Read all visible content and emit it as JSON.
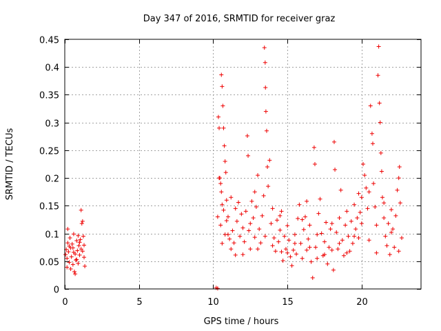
{
  "chart_data": {
    "type": "scatter",
    "title": "Day 347 of 2016, SRMTID for receiver graz",
    "xlabel": "GPS time / hours",
    "ylabel": "SRMTID / TECUs",
    "xlim": [
      0,
      24
    ],
    "ylim": [
      0,
      0.45
    ],
    "xticks": [
      0,
      5,
      10,
      15,
      20
    ],
    "xtick_labels": [
      "0",
      "5",
      "10",
      "15",
      "20"
    ],
    "yticks": [
      0,
      0.05,
      0.1,
      0.15,
      0.2,
      0.25,
      0.3,
      0.35,
      0.4,
      0.45
    ],
    "ytick_labels": [
      "0",
      "0.05",
      "0.1",
      "0.15",
      "0.2",
      "0.25",
      "0.3",
      "0.35",
      "0.4",
      "0.45"
    ],
    "grid": true,
    "marker": "+",
    "color": "#ee0000",
    "series": [
      {
        "name": "SRMTID",
        "points": [
          [
            0.05,
            0.062
          ],
          [
            0.1,
            0.071
          ],
          [
            0.15,
            0.055
          ],
          [
            0.2,
            0.083
          ],
          [
            0.25,
            0.067
          ],
          [
            0.3,
            0.048
          ],
          [
            0.35,
            0.092
          ],
          [
            0.4,
            0.074
          ],
          [
            0.45,
            0.058
          ],
          [
            0.5,
            0.081
          ],
          [
            0.55,
            0.044
          ],
          [
            0.6,
            0.066
          ],
          [
            0.65,
            0.031
          ],
          [
            0.7,
            0.027
          ],
          [
            0.75,
            0.052
          ],
          [
            0.8,
            0.087
          ],
          [
            0.85,
            0.069
          ],
          [
            0.9,
            0.096
          ],
          [
            0.95,
            0.078
          ],
          [
            1.0,
            0.061
          ],
          [
            1.05,
            0.089
          ],
          [
            1.1,
            0.072
          ],
          [
            1.15,
            0.118
          ],
          [
            1.2,
            0.122
          ],
          [
            1.1,
            0.142
          ],
          [
            1.25,
            0.095
          ],
          [
            1.3,
            0.057
          ],
          [
            1.35,
            0.041
          ],
          [
            0.2,
            0.108
          ],
          [
            0.4,
            0.036
          ],
          [
            0.6,
            0.099
          ],
          [
            0.8,
            0.053
          ],
          [
            1.0,
            0.084
          ],
          [
            1.2,
            0.068
          ],
          [
            0.3,
            0.077
          ],
          [
            0.7,
            0.063
          ],
          [
            0.9,
            0.046
          ],
          [
            1.3,
            0.079
          ],
          [
            0.15,
            0.039
          ],
          [
            0.55,
            0.074
          ],
          [
            10.2,
            0.002
          ],
          [
            10.3,
            0.001
          ],
          [
            10.3,
            0.13
          ],
          [
            10.35,
            0.31
          ],
          [
            10.4,
            0.29
          ],
          [
            10.45,
            0.2
          ],
          [
            10.5,
            0.19
          ],
          [
            10.55,
            0.386
          ],
          [
            10.6,
            0.365
          ],
          [
            10.65,
            0.33
          ],
          [
            10.7,
            0.29
          ],
          [
            10.75,
            0.258
          ],
          [
            10.8,
            0.23
          ],
          [
            10.85,
            0.21
          ],
          [
            10.9,
            0.16
          ],
          [
            10.5,
            0.115
          ],
          [
            10.6,
            0.082
          ],
          [
            10.7,
            0.142
          ],
          [
            10.8,
            0.098
          ],
          [
            10.9,
            0.123
          ],
          [
            10.4,
            0.2
          ],
          [
            10.55,
            0.175
          ],
          [
            11.0,
            0.13
          ],
          [
            11.1,
            0.09
          ],
          [
            11.2,
            0.072
          ],
          [
            11.3,
            0.105
          ],
          [
            11.4,
            0.083
          ],
          [
            11.5,
            0.061
          ],
          [
            11.6,
            0.122
          ],
          [
            11.7,
            0.156
          ],
          [
            11.8,
            0.095
          ],
          [
            11.9,
            0.135
          ],
          [
            12.0,
            0.11
          ],
          [
            12.1,
            0.085
          ],
          [
            12.2,
            0.14
          ],
          [
            12.3,
            0.276
          ],
          [
            12.35,
            0.24
          ],
          [
            12.4,
            0.105
          ],
          [
            12.5,
            0.072
          ],
          [
            12.6,
            0.158
          ],
          [
            12.7,
            0.128
          ],
          [
            12.8,
            0.093
          ],
          [
            12.9,
            0.148
          ],
          [
            13.0,
            0.205
          ],
          [
            13.1,
            0.108
          ],
          [
            13.2,
            0.083
          ],
          [
            13.3,
            0.132
          ],
          [
            13.4,
            0.168
          ],
          [
            13.45,
            0.435
          ],
          [
            13.5,
            0.408
          ],
          [
            13.52,
            0.363
          ],
          [
            13.55,
            0.32
          ],
          [
            13.6,
            0.285
          ],
          [
            13.65,
            0.22
          ],
          [
            13.7,
            0.185
          ],
          [
            13.8,
            0.232
          ],
          [
            13.9,
            0.118
          ],
          [
            14.0,
            0.145
          ],
          [
            14.1,
            0.092
          ],
          [
            14.2,
            0.068
          ],
          [
            14.3,
            0.124
          ],
          [
            14.4,
            0.085
          ],
          [
            14.5,
            0.106
          ],
          [
            14.6,
            0.067
          ],
          [
            14.7,
            0.051
          ],
          [
            14.8,
            0.095
          ],
          [
            14.9,
            0.072
          ],
          [
            15.0,
            0.114
          ],
          [
            15.1,
            0.088
          ],
          [
            15.2,
            0.058
          ],
          [
            15.3,
            0.042
          ],
          [
            15.4,
            0.07
          ],
          [
            15.5,
            0.098
          ],
          [
            15.6,
            0.063
          ],
          [
            15.7,
            0.127
          ],
          [
            15.8,
            0.152
          ],
          [
            15.9,
            0.082
          ],
          [
            16.0,
            0.055
          ],
          [
            16.1,
            0.107
          ],
          [
            16.2,
            0.13
          ],
          [
            16.3,
            0.07
          ],
          [
            16.4,
            0.09
          ],
          [
            16.5,
            0.115
          ],
          [
            16.6,
            0.049
          ],
          [
            16.7,
            0.02
          ],
          [
            16.8,
            0.255
          ],
          [
            16.85,
            0.225
          ],
          [
            16.9,
            0.075
          ],
          [
            17.0,
            0.055
          ],
          [
            17.1,
            0.136
          ],
          [
            17.2,
            0.162
          ],
          [
            17.3,
            0.1
          ],
          [
            17.4,
            0.06
          ],
          [
            17.5,
            0.085
          ],
          [
            17.6,
            0.12
          ],
          [
            17.7,
            0.045
          ],
          [
            17.8,
            0.075
          ],
          [
            17.9,
            0.108
          ],
          [
            18.0,
            0.07
          ],
          [
            18.1,
            0.034
          ],
          [
            18.15,
            0.265
          ],
          [
            18.2,
            0.215
          ],
          [
            18.3,
            0.102
          ],
          [
            18.4,
            0.072
          ],
          [
            18.5,
            0.128
          ],
          [
            18.6,
            0.178
          ],
          [
            18.7,
            0.088
          ],
          [
            18.8,
            0.06
          ],
          [
            18.9,
            0.115
          ],
          [
            19.0,
            0.14
          ],
          [
            19.1,
            0.095
          ],
          [
            19.2,
            0.068
          ],
          [
            19.3,
            0.122
          ],
          [
            19.4,
            0.082
          ],
          [
            19.5,
            0.152
          ],
          [
            19.6,
            0.108
          ],
          [
            19.7,
            0.128
          ],
          [
            19.8,
            0.092
          ],
          [
            19.9,
            0.138
          ],
          [
            20.0,
            0.165
          ],
          [
            20.1,
            0.225
          ],
          [
            20.2,
            0.205
          ],
          [
            20.3,
            0.182
          ],
          [
            20.4,
            0.145
          ],
          [
            20.5,
            0.175
          ],
          [
            20.6,
            0.33
          ],
          [
            20.7,
            0.28
          ],
          [
            20.75,
            0.262
          ],
          [
            20.8,
            0.19
          ],
          [
            20.9,
            0.148
          ],
          [
            21.0,
            0.115
          ],
          [
            21.1,
            0.385
          ],
          [
            21.15,
            0.437
          ],
          [
            21.2,
            0.335
          ],
          [
            21.25,
            0.3
          ],
          [
            21.3,
            0.245
          ],
          [
            21.35,
            0.212
          ],
          [
            21.4,
            0.165
          ],
          [
            21.5,
            0.128
          ],
          [
            21.6,
            0.095
          ],
          [
            21.7,
            0.078
          ],
          [
            21.8,
            0.118
          ],
          [
            21.9,
            0.062
          ],
          [
            22.0,
            0.143
          ],
          [
            22.1,
            0.108
          ],
          [
            22.2,
            0.075
          ],
          [
            22.3,
            0.132
          ],
          [
            22.4,
            0.178
          ],
          [
            22.5,
            0.2
          ],
          [
            22.55,
            0.22
          ],
          [
            22.6,
            0.155
          ],
          [
            22.7,
            0.092
          ],
          [
            10.6,
            0.152
          ],
          [
            11.0,
            0.098
          ],
          [
            11.5,
            0.145
          ],
          [
            12.0,
            0.062
          ],
          [
            12.5,
            0.118
          ],
          [
            13.0,
            0.072
          ],
          [
            13.5,
            0.095
          ],
          [
            14.0,
            0.078
          ],
          [
            14.5,
            0.132
          ],
          [
            15.0,
            0.065
          ],
          [
            15.5,
            0.082
          ],
          [
            16.0,
            0.125
          ],
          [
            16.5,
            0.075
          ],
          [
            17.0,
            0.098
          ],
          [
            17.5,
            0.062
          ],
          [
            18.0,
            0.118
          ],
          [
            18.5,
            0.082
          ],
          [
            19.0,
            0.065
          ],
          [
            19.5,
            0.095
          ],
          [
            20.0,
            0.118
          ],
          [
            20.5,
            0.088
          ],
          [
            21.0,
            0.065
          ],
          [
            21.5,
            0.155
          ],
          [
            22.0,
            0.102
          ],
          [
            22.5,
            0.068
          ],
          [
            11.2,
            0.165
          ],
          [
            12.8,
            0.175
          ],
          [
            14.6,
            0.14
          ],
          [
            16.3,
            0.158
          ],
          [
            19.8,
            0.172
          ]
        ]
      }
    ]
  }
}
